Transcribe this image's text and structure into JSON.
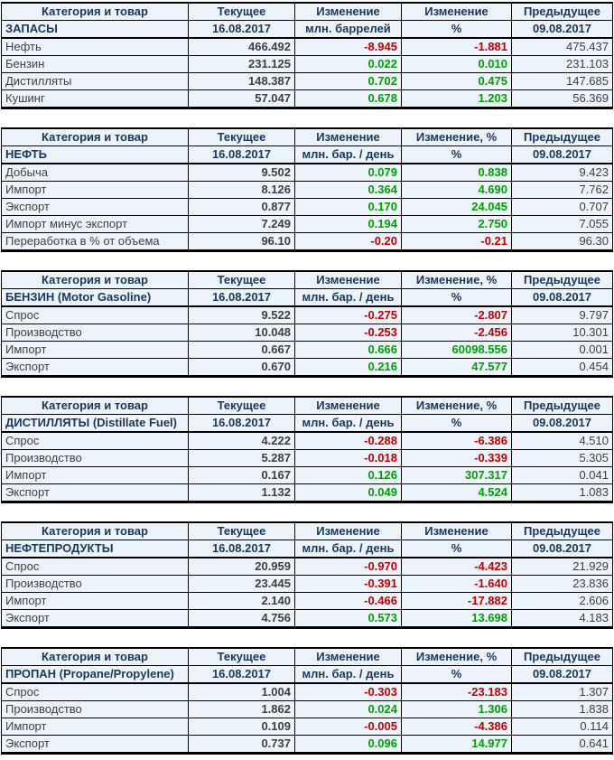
{
  "colors": {
    "row_bg": "#EDF3FB",
    "header_text": "#17375D",
    "label_text": "#3F3F3F",
    "positive": "#00A000",
    "negative": "#C00000",
    "border": "#000000"
  },
  "chart_data": [
    {
      "type": "table",
      "id": "zapasy",
      "title": "ЗАПАСЫ",
      "columns": [
        "Категория и товар",
        "Текущее",
        "Изменение",
        "Изменение",
        "Предыдущее"
      ],
      "subheader": [
        "ЗАПАСЫ",
        "16.08.2017",
        "млн. баррелей",
        "%",
        "09.08.2017"
      ],
      "rows": [
        [
          "Нефть",
          "466.492",
          "-8.945",
          "-1.881",
          "475.437"
        ],
        [
          "Бензин",
          "231.125",
          "0.022",
          "0.010",
          "231.103"
        ],
        [
          "Дистилляты",
          "148.387",
          "0.702",
          "0.475",
          "147.685"
        ],
        [
          "Кушинг",
          "57.047",
          "0.678",
          "1.203",
          "56.369"
        ]
      ]
    },
    {
      "type": "table",
      "id": "neft",
      "title": "НЕФТЬ",
      "columns": [
        "Категория и товар",
        "Текущее",
        "Изменение",
        "Изменение, %",
        "Предыдущее"
      ],
      "subheader": [
        "НЕФТЬ",
        "16.08.2017",
        "млн. бар. / день",
        "%",
        "09.08.2017"
      ],
      "rows": [
        [
          "Добыча",
          "9.502",
          "0.079",
          "0.838",
          "9.423"
        ],
        [
          "Импорт",
          "8.126",
          "0.364",
          "4.690",
          "7.762"
        ],
        [
          "Экспорт",
          "0.877",
          "0.170",
          "24.045",
          "0.707"
        ],
        [
          "Импорт минус экспорт",
          "7.249",
          "0.194",
          "2.750",
          "7.055"
        ],
        [
          "Переработка в % от объема",
          "96.10",
          "-0.20",
          "-0.21",
          "96.30"
        ]
      ]
    },
    {
      "type": "table",
      "id": "benzin",
      "title": "БЕНЗИН (Motor Gasoline)",
      "columns": [
        "Категория и товар",
        "Текущее",
        "Изменение",
        "Изменение, %",
        "Предыдущее"
      ],
      "subheader": [
        "БЕНЗИН (Motor Gasoline)",
        "16.08.2017",
        "млн. бар. / день",
        "%",
        "09.08.2017"
      ],
      "rows": [
        [
          "Спрос",
          "9.522",
          "-0.275",
          "-2.807",
          "9.797"
        ],
        [
          "Производство",
          "10.048",
          "-0.253",
          "-2.456",
          "10.301"
        ],
        [
          "Импорт",
          "0.667",
          "0.666",
          "60098.556",
          "0.001"
        ],
        [
          "Экспорт",
          "0.670",
          "0.216",
          "47.577",
          "0.454"
        ]
      ]
    },
    {
      "type": "table",
      "id": "distillyaty",
      "title": "ДИСТИЛЛЯТЫ (Distillate Fuel)",
      "columns": [
        "Категория и товар",
        "Текущее",
        "Изменение",
        "Изменение, %",
        "Предыдущее"
      ],
      "subheader": [
        "ДИСТИЛЛЯТЫ (Distillate Fuel)",
        "16.08.2017",
        "млн. бар. / день",
        "%",
        "09.08.2017"
      ],
      "rows": [
        [
          "Спрос",
          "4.222",
          "-0.288",
          "-6.386",
          "4.510"
        ],
        [
          "Производство",
          "5.287",
          "-0.018",
          "-0.339",
          "5.305"
        ],
        [
          "Импорт",
          "0.167",
          "0.126",
          "307.317",
          "0.041"
        ],
        [
          "Экспорт",
          "1.132",
          "0.049",
          "4.524",
          "1.083"
        ]
      ]
    },
    {
      "type": "table",
      "id": "nefteprodukty",
      "title": "НЕФТЕПРОДУКТЫ",
      "columns": [
        "Категория и товар",
        "Текущее",
        "Изменение",
        "Изменение",
        "Предыдущее"
      ],
      "subheader": [
        "НЕФТЕПРОДУКТЫ",
        "16.08.2017",
        "млн. бар. / день",
        "%",
        "09.08.2017"
      ],
      "rows": [
        [
          "Спрос",
          "20.959",
          "-0.970",
          "-4.423",
          "21.929"
        ],
        [
          "Производство",
          "23.445",
          "-0.391",
          "-1.640",
          "23.836"
        ],
        [
          "Импорт",
          "2.140",
          "-0.466",
          "-17.882",
          "2.606"
        ],
        [
          "Экспорт",
          "4.756",
          "0.573",
          "13.698",
          "4.183"
        ]
      ]
    },
    {
      "type": "table",
      "id": "propan",
      "title": "ПРОПАН (Propane/Propylene)",
      "columns": [
        "Категория и товар",
        "Текущее",
        "Изменение",
        "Изменение, %",
        "Предыдущее"
      ],
      "subheader": [
        "ПРОПАН (Propane/Propylene)",
        "16.08.2017",
        "млн. бар. / день",
        "%",
        "09.08.2017"
      ],
      "rows": [
        [
          "Спрос",
          "1.004",
          "-0.303",
          "-23.183",
          "1.307"
        ],
        [
          "Производство",
          "1.862",
          "0.024",
          "1.306",
          "1.838"
        ],
        [
          "Импорт",
          "0.109",
          "-0.005",
          "-4.386",
          "0.114"
        ],
        [
          "Экспорт",
          "0.737",
          "0.096",
          "14.977",
          "0.641"
        ]
      ]
    }
  ]
}
